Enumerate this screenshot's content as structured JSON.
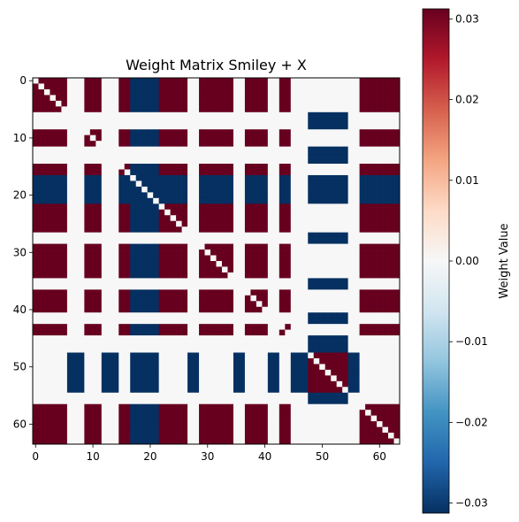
{
  "chart_data": {
    "type": "heatmap",
    "title": "Weight Matrix Smiley + X",
    "rows": 64,
    "cols": 64,
    "x_ticks": [
      0,
      10,
      20,
      30,
      40,
      50,
      60
    ],
    "y_ticks": [
      0,
      10,
      20,
      30,
      40,
      50,
      60
    ],
    "colorbar": {
      "label": "Weight Value",
      "min": -0.03125,
      "max": 0.03125,
      "ticks": [
        0.03,
        0.02,
        0.01,
        0.0,
        -0.01,
        -0.02,
        -0.03
      ],
      "tick_labels": [
        "0.03",
        "0.02",
        "0.01",
        "0.00",
        "−0.01",
        "−0.02",
        "−0.03"
      ],
      "colormap": "RdBu_r"
    },
    "pattern": {
      "positive_value": 0.03125,
      "negative_value": -0.03125,
      "zero_value": 0,
      "group_a_units": [
        6,
        7,
        8,
        12,
        13,
        14,
        27,
        28,
        35,
        36,
        41,
        42,
        45,
        46,
        47,
        55,
        56
      ],
      "group_b_units": [
        17,
        18,
        19,
        20,
        21
      ],
      "group_c_units": [
        48,
        49,
        50,
        51,
        52,
        53,
        54
      ]
    },
    "colors": {
      "strong_positive": "#67001f",
      "strong_negative": "#053061",
      "neutral": "#f7f7f7"
    }
  }
}
